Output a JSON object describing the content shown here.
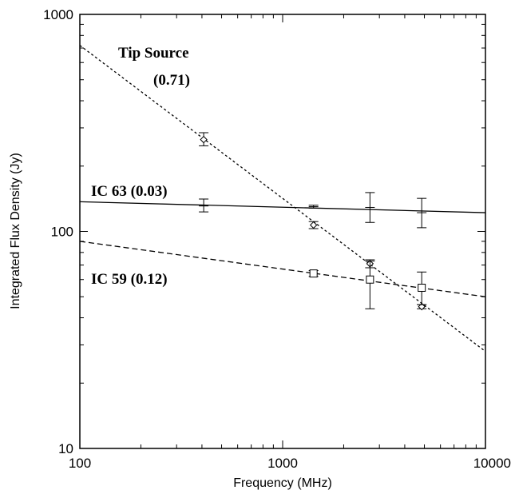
{
  "chart_data": {
    "type": "scatter",
    "xlabel": "Frequency (MHz)",
    "ylabel": "Integrated Flux Density (Jy)",
    "x_scale": "log",
    "y_scale": "log",
    "xlim": [
      100,
      10000
    ],
    "ylim": [
      10,
      1000
    ],
    "x_ticks": [
      "100",
      "1000",
      "10000"
    ],
    "y_ticks": [
      "10",
      "100",
      "1000"
    ],
    "grid": false,
    "legend": "none",
    "annotations": [
      {
        "text": "Tip Source",
        "series": 0
      },
      {
        "text": "(0.71)",
        "series": 0
      },
      {
        "text": "IC 63 (0.03)",
        "series": 1
      },
      {
        "text": "IC 59 (0.12)",
        "series": 2
      }
    ],
    "series": [
      {
        "marker": "diamond",
        "line_style": "dotted",
        "fit": {
          "x1": 100,
          "y1": 720,
          "x2": 10000,
          "y2": 28
        },
        "points": [
          {
            "x": 408,
            "y": 265,
            "err_low": 248,
            "err_high": 285
          },
          {
            "x": 1420,
            "y": 107,
            "err_low": 103,
            "err_high": 111
          },
          {
            "x": 2695,
            "y": 71,
            "err_low": 68,
            "err_high": 74
          },
          {
            "x": 4850,
            "y": 45,
            "err_low": 44,
            "err_high": 46
          }
        ]
      },
      {
        "marker": "plus",
        "line_style": "solid",
        "fit": {
          "x1": 100,
          "y1": 137,
          "x2": 10000,
          "y2": 122
        },
        "points": [
          {
            "x": 408,
            "y": 131,
            "err_low": 123,
            "err_high": 141
          },
          {
            "x": 1420,
            "y": 130,
            "err_low": 128,
            "err_high": 132
          },
          {
            "x": 2695,
            "y": 129,
            "err_low": 110,
            "err_high": 151
          },
          {
            "x": 4850,
            "y": 122,
            "err_low": 104,
            "err_high": 142
          }
        ]
      },
      {
        "marker": "square",
        "line_style": "dashed",
        "fit": {
          "x1": 100,
          "y1": 90,
          "x2": 10000,
          "y2": 50
        },
        "points": [
          {
            "x": 1420,
            "y": 64,
            "err_low": 62,
            "err_high": 66
          },
          {
            "x": 2695,
            "y": 60,
            "err_low": 44,
            "err_high": 73
          },
          {
            "x": 4850,
            "y": 55,
            "err_low": 46,
            "err_high": 65
          }
        ]
      }
    ]
  }
}
